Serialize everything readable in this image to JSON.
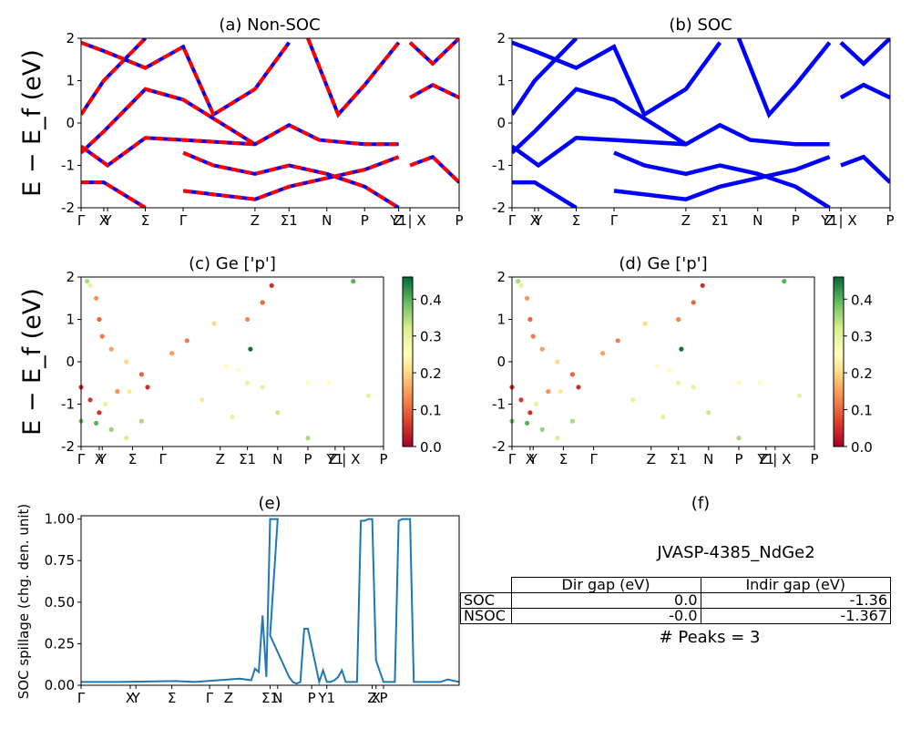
{
  "figure": {
    "ylabel_bands": "E − E_f (eV)",
    "band_ticks": [
      "Γ",
      "X",
      "Y",
      "Σ",
      "Γ",
      "Z",
      "Σ1",
      "N",
      "P",
      "Y1",
      "Z | X",
      "P"
    ],
    "ytick_labels": [
      "-2",
      "-1",
      "0",
      "1",
      "2"
    ],
    "colorbar_ticks": [
      "0.0",
      "0.1",
      "0.2",
      "0.3",
      "0.4"
    ],
    "colors": {
      "nonsoc_red": "#ff0000",
      "nonsoc_blue": "#0000ff",
      "soc": "#0000ff",
      "spillage": "#1f77b4"
    }
  },
  "panels": {
    "a": {
      "title": "(a) Non-SOC"
    },
    "b": {
      "title": "(b) SOC"
    },
    "c": {
      "title": "(c)  Ge ['p']"
    },
    "d": {
      "title": "(d) Ge ['p']"
    },
    "e": {
      "title": "(e)",
      "ylabel": "SOC spillage (chg. den. unit)",
      "xtick_labels": [
        "Γ",
        "X",
        "Y",
        "Σ",
        "Γ",
        "Z",
        "Σ1",
        "N",
        "P",
        "Y1",
        "Z",
        "X",
        "P"
      ],
      "ytick_labels": [
        "0.00",
        "0.25",
        "0.50",
        "0.75",
        "1.00"
      ]
    },
    "f": {
      "title": "(f)",
      "material": "JVASP-4385_NdGe2",
      "table": {
        "headers": [
          "Dir gap (eV)",
          "Indir gap (eV)"
        ],
        "rows": [
          {
            "label": "SOC",
            "dir": "0.0",
            "indir": "-1.36"
          },
          {
            "label": "NSOC",
            "dir": "-0.0",
            "indir": "-1.367"
          }
        ]
      },
      "peaks": "# Peaks = 3"
    }
  },
  "chart_data": [
    {
      "panel": "a",
      "type": "line",
      "title": "(a) Non-SOC",
      "xlabel": "",
      "ylabel": "E − E_f (eV)",
      "ylim": [
        -2,
        2
      ],
      "xticks": [
        0,
        0.06,
        0.07,
        0.17,
        0.27,
        0.46,
        0.55,
        0.65,
        0.75,
        0.84,
        0.87,
        1.0
      ],
      "series": [
        {
          "values": [
            [
              0,
              0.2
            ],
            [
              0.06,
              1.0
            ],
            [
              0.17,
              2.0
            ]
          ]
        },
        {
          "values": [
            [
              0,
              -0.55
            ],
            [
              0.07,
              -1.0
            ],
            [
              0.17,
              -0.35
            ],
            [
              0.27,
              -0.4
            ],
            [
              0.46,
              -0.5
            ],
            [
              0.55,
              -0.05
            ],
            [
              0.63,
              -0.4
            ],
            [
              0.75,
              -0.5
            ],
            [
              0.84,
              -0.5
            ]
          ]
        },
        {
          "values": [
            [
              0,
              -0.7
            ],
            [
              0.06,
              -0.2
            ],
            [
              0.17,
              0.8
            ],
            [
              0.27,
              0.55
            ],
            [
              0.46,
              -0.5
            ]
          ]
        },
        {
          "values": [
            [
              0,
              -1.4
            ],
            [
              0.06,
              -1.4
            ],
            [
              0.17,
              -2.0
            ]
          ]
        },
        {
          "values": [
            [
              0.27,
              -0.7
            ],
            [
              0.35,
              -1.0
            ],
            [
              0.46,
              -1.2
            ],
            [
              0.55,
              -1.0
            ],
            [
              0.65,
              -1.2
            ],
            [
              0.75,
              -1.5
            ],
            [
              0.84,
              -2.0
            ]
          ]
        },
        {
          "values": [
            [
              0,
              1.9
            ],
            [
              0.06,
              1.7
            ],
            [
              0.17,
              1.3
            ],
            [
              0.27,
              1.8
            ],
            [
              0.35,
              0.2
            ],
            [
              0.46,
              0.8
            ],
            [
              0.55,
              1.9
            ]
          ]
        },
        {
          "values": [
            [
              0.27,
              -1.6
            ],
            [
              0.46,
              -1.8
            ],
            [
              0.55,
              -1.5
            ],
            [
              0.65,
              -1.3
            ],
            [
              0.75,
              -1.1
            ],
            [
              0.84,
              -0.8
            ]
          ]
        },
        {
          "values": [
            [
              0.6,
              2.0
            ],
            [
              0.68,
              0.2
            ],
            [
              0.75,
              0.9
            ],
            [
              0.84,
              1.9
            ]
          ]
        },
        {
          "values": [
            [
              0.87,
              0.6
            ],
            [
              0.93,
              0.9
            ],
            [
              1.0,
              0.6
            ]
          ]
        },
        {
          "values": [
            [
              0.87,
              -1.0
            ],
            [
              0.93,
              -0.8
            ],
            [
              1.0,
              -1.4
            ]
          ]
        },
        {
          "values": [
            [
              0.87,
              1.9
            ],
            [
              0.93,
              1.4
            ],
            [
              1.0,
              2.0
            ]
          ]
        }
      ]
    },
    {
      "panel": "b",
      "type": "line",
      "title": "(b) SOC",
      "ylim": [
        -2,
        2
      ],
      "note": "same band structure as (a)"
    },
    {
      "panel": "c",
      "type": "scatter",
      "title": "(c)  Ge ['p']",
      "ylim": [
        -2,
        2
      ],
      "colorbar": [
        0.0,
        0.46
      ],
      "points": [
        [
          0.02,
          1.9,
          0.35
        ],
        [
          0.03,
          1.8,
          0.3
        ],
        [
          0.05,
          1.5,
          0.14
        ],
        [
          0.06,
          1.0,
          0.1
        ],
        [
          0.07,
          0.6,
          0.12
        ],
        [
          0.1,
          0.3,
          0.15
        ],
        [
          0.15,
          0.0,
          0.2
        ],
        [
          0.2,
          -0.3,
          0.1
        ],
        [
          0.22,
          -0.6,
          0.05
        ],
        [
          0.0,
          -0.6,
          0.05
        ],
        [
          0.03,
          -0.9,
          0.06
        ],
        [
          0.06,
          -1.2,
          0.05
        ],
        [
          0.0,
          -1.4,
          0.38
        ],
        [
          0.05,
          -1.45,
          0.4
        ],
        [
          0.1,
          -1.6,
          0.36
        ],
        [
          0.15,
          -1.8,
          0.32
        ],
        [
          0.2,
          -1.4,
          0.35
        ],
        [
          0.08,
          -1.0,
          0.3
        ],
        [
          0.12,
          -0.7,
          0.14
        ],
        [
          0.16,
          -0.7,
          0.22
        ],
        [
          0.55,
          1.0,
          0.13
        ],
        [
          0.6,
          1.4,
          0.1
        ],
        [
          0.63,
          1.8,
          0.05
        ],
        [
          0.52,
          -0.2,
          0.25
        ],
        [
          0.55,
          -0.5,
          0.3
        ],
        [
          0.48,
          -0.1,
          0.25
        ],
        [
          0.6,
          -0.6,
          0.3
        ],
        [
          0.75,
          -0.5,
          0.25
        ],
        [
          0.82,
          -0.5,
          0.25
        ],
        [
          0.4,
          -0.9,
          0.22
        ],
        [
          0.5,
          -1.3,
          0.3
        ],
        [
          0.65,
          -1.2,
          0.33
        ],
        [
          0.75,
          -1.8,
          0.35
        ],
        [
          0.3,
          0.2,
          0.15
        ],
        [
          0.35,
          0.5,
          0.12
        ],
        [
          0.44,
          0.9,
          0.2
        ],
        [
          0.9,
          1.9,
          0.4
        ],
        [
          0.95,
          -0.8,
          0.3
        ],
        [
          0.56,
          0.3,
          0.45
        ]
      ]
    },
    {
      "panel": "d",
      "type": "scatter",
      "title": "(d) Ge ['p']",
      "ylim": [
        -2,
        2
      ],
      "colorbar": [
        0.0,
        0.46
      ],
      "note": "same points as (c)"
    },
    {
      "panel": "e",
      "type": "line",
      "title": "(e)",
      "ylabel": "SOC spillage (chg. den. unit)",
      "ylim": [
        0,
        1.02
      ],
      "x": [
        0,
        0.1,
        0.25,
        0.3,
        0.42,
        0.45,
        0.46,
        0.47,
        0.48,
        0.49,
        0.5,
        0.51,
        0.52,
        0.5,
        0.55,
        0.56,
        0.57,
        0.58,
        0.59,
        0.6,
        0.63,
        0.64,
        0.65,
        0.66,
        0.67,
        0.68,
        0.69,
        0.7,
        0.73,
        0.74,
        0.75,
        0.76,
        0.77,
        0.78,
        0.8,
        0.81,
        0.82,
        0.83,
        0.84,
        0.85,
        0.86,
        0.87,
        0.88,
        0.9,
        0.92,
        0.95,
        0.97,
        1.0
      ],
      "values": [
        0.02,
        0.02,
        0.025,
        0.02,
        0.04,
        0.03,
        0.1,
        0.08,
        0.42,
        0.05,
        1.0,
        1.0,
        1.0,
        0.3,
        0.05,
        0.02,
        0.01,
        0.02,
        0.34,
        0.34,
        0.02,
        0.09,
        0.02,
        0.02,
        0.03,
        0.05,
        0.09,
        0.02,
        0.02,
        0.99,
        0.99,
        1.0,
        1.0,
        0.15,
        0.02,
        0.02,
        0.02,
        0.02,
        0.99,
        1.0,
        1.0,
        1.0,
        0.02,
        0.02,
        0.02,
        0.02,
        0.035,
        0.02
      ]
    }
  ]
}
